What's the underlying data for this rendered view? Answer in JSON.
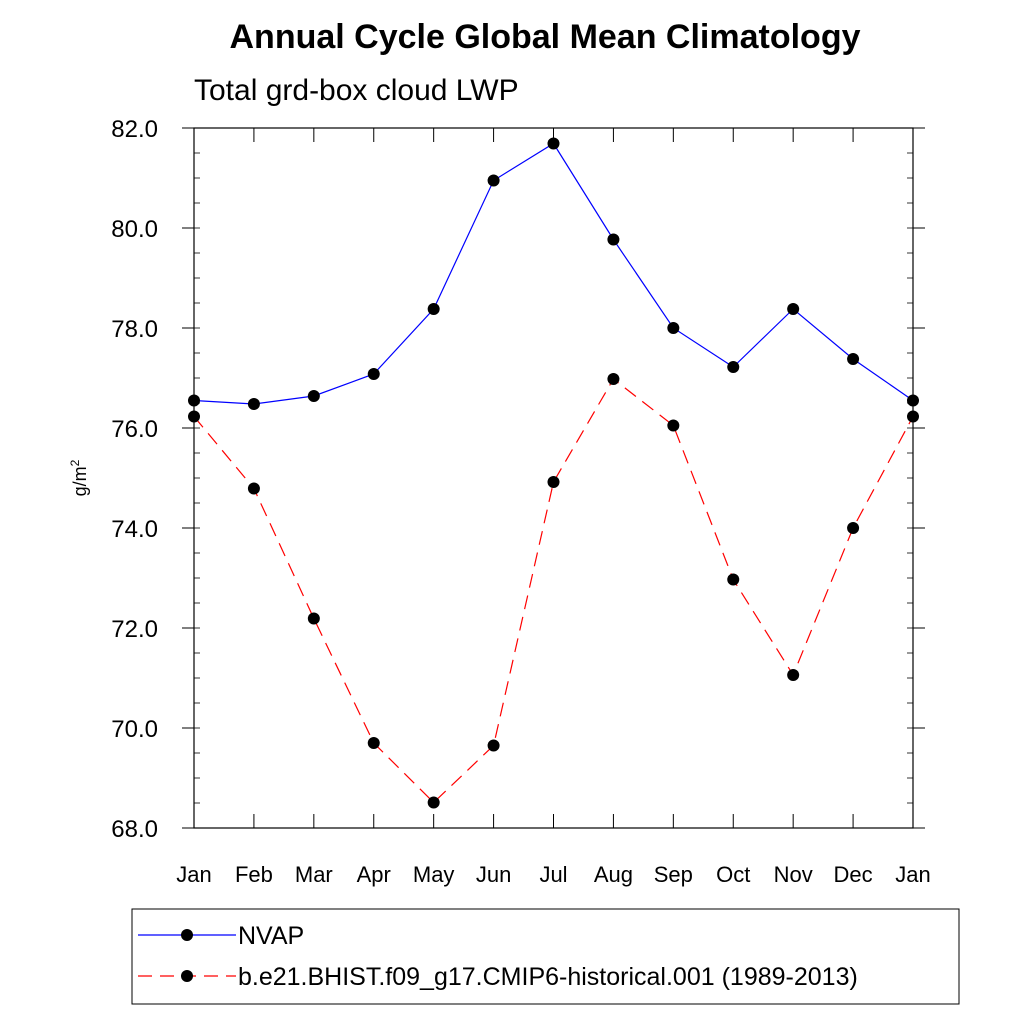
{
  "chart_data": {
    "type": "line",
    "title": "Annual Cycle Global Mean Climatology",
    "subtitle": "Total grd-box cloud LWP",
    "xlabel": "",
    "ylabel": "g/m",
    "ylabel_superscript": "2",
    "categories": [
      "Jan",
      "Feb",
      "Mar",
      "Apr",
      "May",
      "Jun",
      "Jul",
      "Aug",
      "Sep",
      "Oct",
      "Nov",
      "Dec",
      "Jan"
    ],
    "ylim": [
      68.0,
      82.0
    ],
    "yticks": [
      "68.0",
      "70.0",
      "72.0",
      "74.0",
      "76.0",
      "78.0",
      "80.0",
      "82.0"
    ],
    "series": [
      {
        "name": "NVAP",
        "color": "#0000ff",
        "dash": "solid",
        "values": [
          76.55,
          76.48,
          76.64,
          77.08,
          78.38,
          80.95,
          81.69,
          79.77,
          78.0,
          77.22,
          78.38,
          77.38,
          76.55
        ]
      },
      {
        "name": "b.e21.BHIST.f09_g17.CMIP6-historical.001 (1989-2013)",
        "color": "#ff0000",
        "dash": "dashed",
        "values": [
          76.23,
          74.79,
          72.19,
          69.7,
          68.51,
          69.65,
          74.92,
          76.98,
          76.05,
          72.97,
          71.06,
          74.0,
          76.23
        ]
      }
    ]
  }
}
